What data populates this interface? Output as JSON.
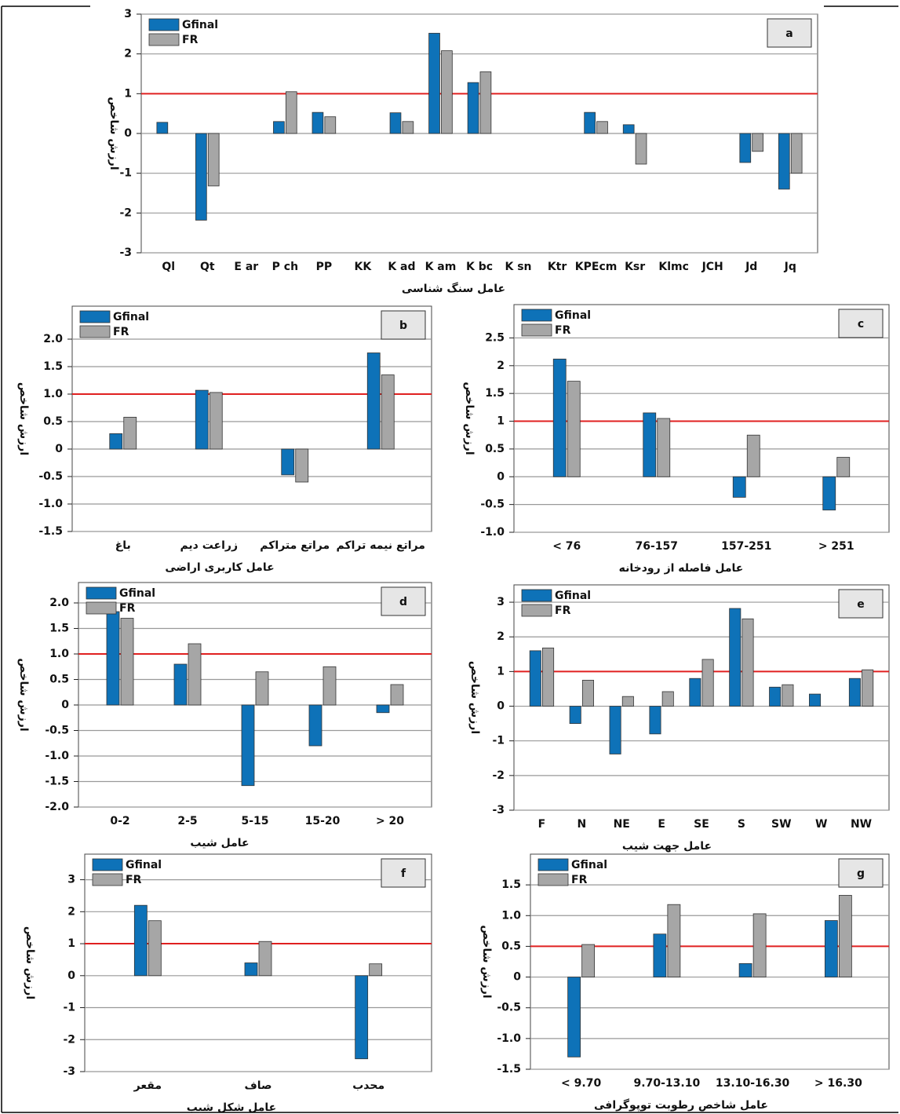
{
  "chart_data": [
    {
      "type": "bar",
      "panel_label": "a",
      "ylabel": "ارزش شاخص",
      "xlabel": "عامل سنگ شناسی",
      "categories": [
        "Ql",
        "Qt",
        "E ar",
        "P ch",
        "PP",
        "KK",
        "K ad",
        "K am",
        "K bc",
        "K sn",
        "Ktr",
        "KPEcm",
        "Ksr",
        "Klmc",
        "JCH",
        "Jd",
        "Jq"
      ],
      "series": [
        {
          "name": "Gfinal",
          "color": "#0e72b8",
          "values": [
            0.28,
            -2.18,
            null,
            0.3,
            0.53,
            null,
            0.52,
            2.52,
            1.28,
            null,
            null,
            0.53,
            0.22,
            null,
            null,
            -0.73,
            -1.4
          ]
        },
        {
          "name": "FR",
          "color": "#a6a6a6",
          "values": [
            null,
            -1.32,
            null,
            1.05,
            0.42,
            null,
            0.3,
            2.08,
            1.55,
            null,
            null,
            0.3,
            -0.77,
            null,
            null,
            -0.45,
            -1.0
          ]
        }
      ],
      "ylim": [
        -3,
        3
      ],
      "yticks": [
        -3,
        -2,
        -1,
        0,
        1,
        2,
        3
      ],
      "ref_line": 1,
      "ref_color": "#e02020",
      "grid": true
    },
    {
      "type": "bar",
      "panel_label": "b",
      "ylabel": "ارزش شاخص",
      "xlabel": "عامل کاربری اراضی",
      "categories": [
        "باغ",
        "زراعت دیم",
        "مراتع متراکم",
        "مراتع نیمه تراکم"
      ],
      "series": [
        {
          "name": "Gfinal",
          "color": "#0e72b8",
          "values": [
            0.28,
            1.07,
            -0.47,
            1.75
          ]
        },
        {
          "name": "FR",
          "color": "#a6a6a6",
          "values": [
            0.58,
            1.03,
            -0.6,
            1.35
          ]
        }
      ],
      "ylim": [
        -1.5,
        2.6
      ],
      "yticks": [
        {
          "value": -1.5,
          "label": "-1.5"
        },
        {
          "value": -1,
          "label": "-1.0"
        },
        -0.5,
        0,
        0.5,
        {
          "value": 1,
          "label": "1.0"
        },
        1.5,
        {
          "value": 2,
          "label": "2.0"
        }
      ],
      "ref_line": 1,
      "ref_color": "#e02020",
      "grid": true
    },
    {
      "type": "bar",
      "panel_label": "c",
      "ylabel": "ارزش شاخص",
      "xlabel": "عامل فاصله از رودخانه",
      "categories": [
        "< 76",
        "76-157",
        "157-251",
        "> 251"
      ],
      "series": [
        {
          "name": "Gfinal",
          "color": "#0e72b8",
          "values": [
            2.12,
            1.15,
            -0.37,
            -0.6
          ]
        },
        {
          "name": "FR",
          "color": "#a6a6a6",
          "values": [
            1.72,
            1.05,
            0.75,
            0.35
          ]
        }
      ],
      "ylim": [
        -1,
        3.1
      ],
      "yticks": [
        {
          "value": -1,
          "label": "-1.0"
        },
        -0.5,
        0,
        0.5,
        1,
        1.5,
        2,
        2.5
      ],
      "ref_line": 1,
      "ref_color": "#e02020",
      "grid": true
    },
    {
      "type": "bar",
      "panel_label": "d",
      "ylabel": "ارزش شاخص",
      "xlabel": "عامل شیب",
      "categories": [
        "0-2",
        "2-5",
        "5-15",
        "15-20",
        "> 20"
      ],
      "series": [
        {
          "name": "Gfinal",
          "color": "#0e72b8",
          "values": [
            1.83,
            0.8,
            -1.58,
            -0.8,
            -0.15
          ]
        },
        {
          "name": "FR",
          "color": "#a6a6a6",
          "values": [
            1.7,
            1.2,
            0.65,
            0.75,
            0.4
          ]
        }
      ],
      "ylim": [
        -2,
        2.4
      ],
      "yticks": [
        {
          "value": -2,
          "label": "-2.0"
        },
        -1.5,
        {
          "value": -1,
          "label": "-1.0"
        },
        -0.5,
        0,
        0.5,
        {
          "value": 1,
          "label": "1.0"
        },
        1.5,
        {
          "value": 2,
          "label": "2.0"
        }
      ],
      "ref_line": 1,
      "ref_color": "#e02020",
      "grid": true
    },
    {
      "type": "bar",
      "panel_label": "e",
      "ylabel": "ارزش شاخص",
      "xlabel": "عامل جهت شیب",
      "categories": [
        "F",
        "N",
        "NE",
        "E",
        "SE",
        "S",
        "SW",
        "W",
        "NW"
      ],
      "series": [
        {
          "name": "Gfinal",
          "color": "#0e72b8",
          "values": [
            1.6,
            -0.5,
            -1.38,
            -0.8,
            0.8,
            2.82,
            0.55,
            0.35,
            0.8
          ]
        },
        {
          "name": "FR",
          "color": "#a6a6a6",
          "values": [
            1.68,
            0.75,
            0.28,
            0.42,
            1.35,
            2.52,
            0.62,
            null,
            1.05
          ]
        }
      ],
      "ylim": [
        -3,
        3.5
      ],
      "yticks": [
        -3,
        -2,
        -1,
        0,
        1,
        2,
        3
      ],
      "ref_line": 1,
      "ref_color": "#e02020",
      "grid": true
    },
    {
      "type": "bar",
      "panel_label": "f",
      "ylabel": "ارزش شاخص",
      "xlabel": "عامل شکل شیب",
      "categories": [
        "مقعر",
        "صاف",
        "محدب"
      ],
      "series": [
        {
          "name": "Gfinal",
          "color": "#0e72b8",
          "values": [
            2.2,
            0.4,
            -2.6
          ]
        },
        {
          "name": "FR",
          "color": "#a6a6a6",
          "values": [
            1.72,
            1.07,
            0.37
          ]
        }
      ],
      "ylim": [
        -3,
        3.8
      ],
      "yticks": [
        -3,
        -2,
        -1,
        0,
        1,
        2,
        3
      ],
      "ref_line": 1,
      "ref_color": "#e02020",
      "grid": true
    },
    {
      "type": "bar",
      "panel_label": "g",
      "ylabel": "ارزش شاخص",
      "xlabel": "عامل شاخص رطوبت توپوگرافی",
      "categories": [
        "< 9.70",
        "9.70-13.10",
        "13.10-16.30",
        "> 16.30"
      ],
      "series": [
        {
          "name": "Gfinal",
          "color": "#0e72b8",
          "values": [
            -1.3,
            0.7,
            0.22,
            0.92
          ]
        },
        {
          "name": "FR",
          "color": "#a6a6a6",
          "values": [
            0.53,
            1.18,
            1.03,
            1.33
          ]
        }
      ],
      "ylim": [
        -1.5,
        2.0
      ],
      "yticks": [
        -1.5,
        {
          "value": -1,
          "label": "-1.0"
        },
        -0.5,
        0,
        0.5,
        {
          "value": 1,
          "label": "1.0"
        },
        1.5
      ],
      "ref_line": 0.5,
      "ref_color": "#e02020",
      "grid": true
    }
  ]
}
